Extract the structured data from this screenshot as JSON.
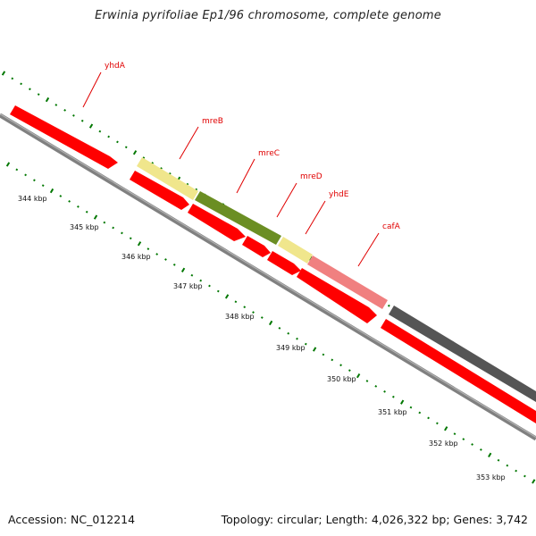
{
  "title": "Erwinia pyrifoliae Ep1/96 chromosome, complete genome",
  "footer": {
    "accession": "Accession: NC_012214",
    "stats": "Topology: circular; Length: 4,026,322 bp; Genes: 3,742"
  },
  "colors": {
    "cds": "#ff0000",
    "gene_yellow": "#f0e68c",
    "gene_olive": "#6b8e23",
    "gene_pink": "#f08080",
    "gene_gray": "#555555",
    "backbone": "#808080",
    "tick": "#007700",
    "label": "#e00000"
  },
  "gene_labels": [
    "yhdA",
    "mreB",
    "mreC",
    "mreD",
    "yhdE",
    "cafA"
  ],
  "kbp_labels": [
    "344 kbp",
    "345 kbp",
    "346 kbp",
    "347 kbp",
    "348 kbp",
    "349 kbp",
    "350 kbp",
    "351 kbp",
    "352 kbp",
    "353 kbp"
  ]
}
